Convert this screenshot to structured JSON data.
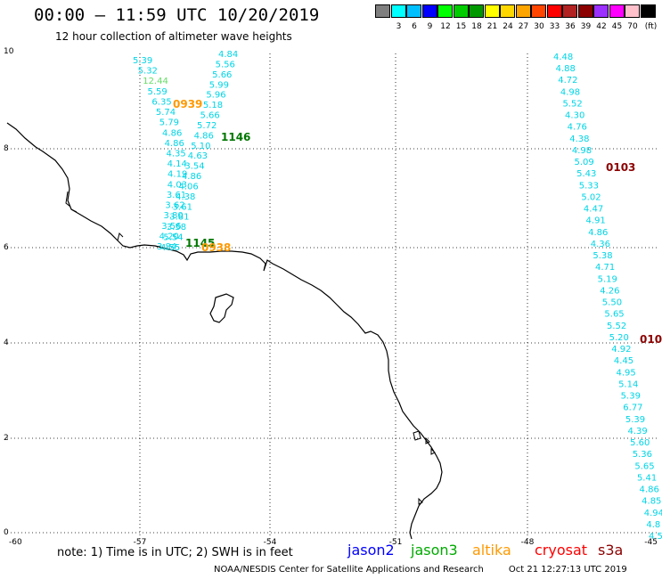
{
  "title": "00:00 – 11:59 UTC 10/20/2019",
  "subtitle": "12 hour collection of altimeter wave heights",
  "colorbar": {
    "unit": "(ft)",
    "entries": [
      {
        "label": "",
        "color": "#7f7f7f"
      },
      {
        "label": "3",
        "color": "#00ffff"
      },
      {
        "label": "6",
        "color": "#00bfff"
      },
      {
        "label": "9",
        "color": "#0000ff"
      },
      {
        "label": "12",
        "color": "#00ff00"
      },
      {
        "label": "15",
        "color": "#00cc00"
      },
      {
        "label": "18",
        "color": "#009900"
      },
      {
        "label": "21",
        "color": "#ffff00"
      },
      {
        "label": "24",
        "color": "#ffd700"
      },
      {
        "label": "27",
        "color": "#ffa500"
      },
      {
        "label": "30",
        "color": "#ff4500"
      },
      {
        "label": "33",
        "color": "#ff0000"
      },
      {
        "label": "36",
        "color": "#b22222"
      },
      {
        "label": "39",
        "color": "#8b0000"
      },
      {
        "label": "42",
        "color": "#9b30ff"
      },
      {
        "label": "45",
        "color": "#ff00ff"
      },
      {
        "label": "70",
        "color": "#ffc0cb"
      },
      {
        "label": "",
        "color": "#000000"
      }
    ]
  },
  "axes": {
    "lon_ticks": [
      "-60",
      "-57",
      "-54",
      "-51",
      "-48",
      "-45"
    ],
    "lat_ticks": [
      "0",
      "2",
      "4",
      "6",
      "8",
      "10"
    ]
  },
  "tracks": [
    {
      "id": "track-a",
      "color": "#00d5e6",
      "values": [
        "5.39",
        "5.32",
        "12.44",
        "5.59",
        "6.35",
        "5.74",
        "5.79",
        "4.86",
        "4.86",
        "4.35",
        "4.14",
        "4.19",
        "4.03",
        "3.61",
        "3.62",
        "3.80",
        "3.56",
        "4.20",
        "3.84"
      ]
    },
    {
      "id": "track-b",
      "color": "#00d5e6",
      "values": [
        "4.84",
        "5.56",
        "5.66",
        "5.99",
        "5.96",
        "5.18",
        "5.66",
        "5.72",
        "4.86",
        "5.10",
        "4.63",
        "3.54",
        "4.86",
        "4.06",
        "4.38",
        "3.61",
        "3.81",
        "3.58",
        "5.54",
        "4.55"
      ]
    },
    {
      "id": "track-c",
      "color": "#00d5e6",
      "values": [
        "4.48",
        "4.88",
        "4.72",
        "4.98",
        "5.52",
        "4.30",
        "4.76",
        "4.38",
        "4.98",
        "5.09",
        "5.43",
        "5.33",
        "5.02",
        "4.47",
        "4.91",
        "4.86",
        "4.36",
        "5.38",
        "4.71",
        "5.19",
        "4.26",
        "5.50",
        "5.65",
        "5.52",
        "5.20",
        "4.92",
        "4.45",
        "4.95",
        "5.14",
        "5.39",
        "6.77",
        "5.39",
        "4.39",
        "5.60",
        "5.36",
        "5.65",
        "5.41",
        "4.86",
        "4.85",
        "4.94",
        "4.8",
        "4.5"
      ]
    }
  ],
  "time_labels": [
    {
      "text": "0939",
      "color": "#ff9900"
    },
    {
      "text": "1146",
      "color": "#007700"
    },
    {
      "text": "1145",
      "color": "#007700"
    },
    {
      "text": "0938",
      "color": "#ff9900"
    },
    {
      "text": "0103",
      "color": "#8b0000"
    },
    {
      "text": "010",
      "color": "#8b0000"
    }
  ],
  "note": "note: 1) Time is in UTC; 2) SWH is in feet",
  "satellites": [
    {
      "name": "jason2",
      "color": "#0000ff"
    },
    {
      "name": "jason3",
      "color": "#00aa00"
    },
    {
      "name": "altika",
      "color": "#ff9900"
    },
    {
      "name": "cryosat",
      "color": "#ff0000"
    },
    {
      "name": "s3a",
      "color": "#8b0000"
    }
  ],
  "credit": {
    "org": "NOAA/NESDIS Center for Satellite Applications and Research",
    "timestamp": "Oct 21 12:27:13 UTC 2019"
  }
}
